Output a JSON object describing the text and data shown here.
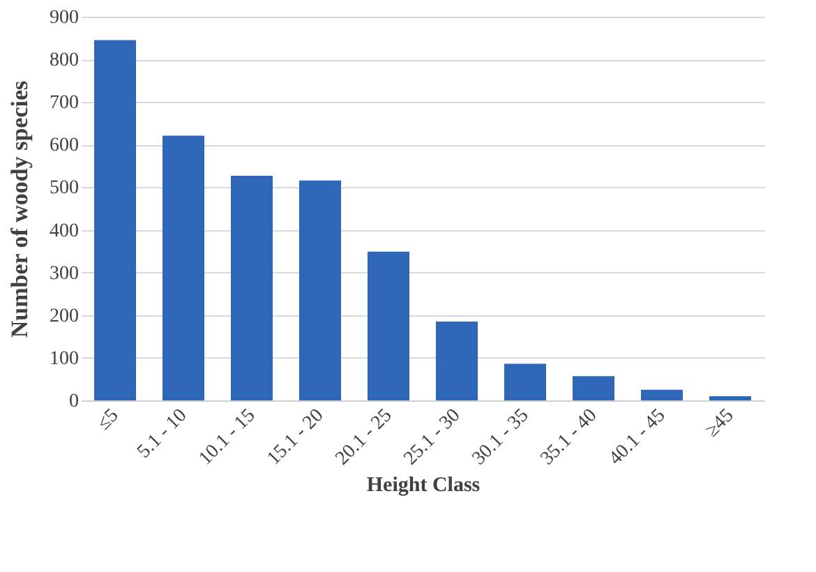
{
  "chart_data": {
    "type": "bar",
    "xlabel": "Height Class",
    "ylabel": "Number of  woody species",
    "categories": [
      "≤5",
      "5.1 - 10",
      "10.1 - 15",
      "15.1 - 20",
      "20.1 - 25",
      "25.1 - 30",
      "30.1 - 35",
      "35.1 - 40",
      "40.1 - 45",
      "≥45"
    ],
    "values": [
      845,
      621,
      527,
      516,
      349,
      185,
      86,
      57,
      25,
      10
    ],
    "color": "#2e67b8",
    "ylim": [
      0,
      900
    ],
    "yticks": [
      0,
      100,
      200,
      300,
      400,
      500,
      600,
      700,
      800,
      900
    ],
    "grid": "y"
  }
}
